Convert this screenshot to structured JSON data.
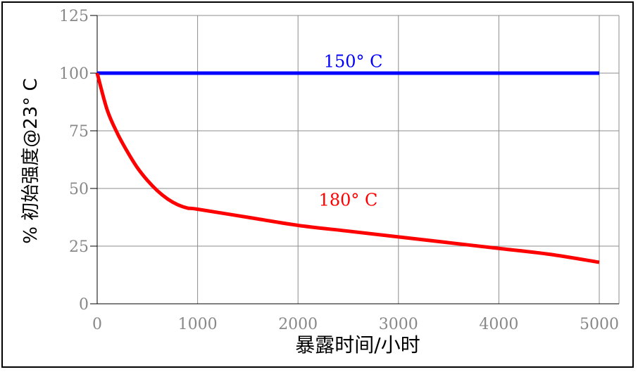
{
  "chart_data": {
    "type": "line",
    "xlabel": "暴露时间/小时",
    "ylabel": "% 初始强度@23° C",
    "xlim": [
      0,
      5000
    ],
    "ylim": [
      0,
      125
    ],
    "x_ticks": [
      "0",
      "1000",
      "2000",
      "3000",
      "4000",
      "5000"
    ],
    "y_ticks": [
      "0",
      "25",
      "50",
      "75",
      "100",
      "125"
    ],
    "grid": true,
    "series": [
      {
        "name": "150° C",
        "color": "#0000ff",
        "x": [
          0,
          5000
        ],
        "y": [
          100,
          100
        ]
      },
      {
        "name": "180° C",
        "color": "#ff0000",
        "x": [
          0,
          100,
          200,
          300,
          400,
          500,
          600,
          700,
          800,
          900,
          1000,
          1500,
          2000,
          2500,
          3000,
          3500,
          4000,
          4500,
          5000
        ],
        "y": [
          100,
          84,
          74,
          66,
          59,
          53.5,
          49,
          45.5,
          43,
          41.5,
          41,
          37.5,
          34,
          31.5,
          29,
          26.5,
          24,
          21.5,
          18
        ]
      }
    ],
    "annotations": [
      {
        "text": "150° C",
        "x": 2200,
        "y": 105,
        "color": "#0000ff"
      },
      {
        "text": "180° C",
        "x": 2150,
        "y": 45,
        "color": "#ff0000"
      }
    ]
  }
}
